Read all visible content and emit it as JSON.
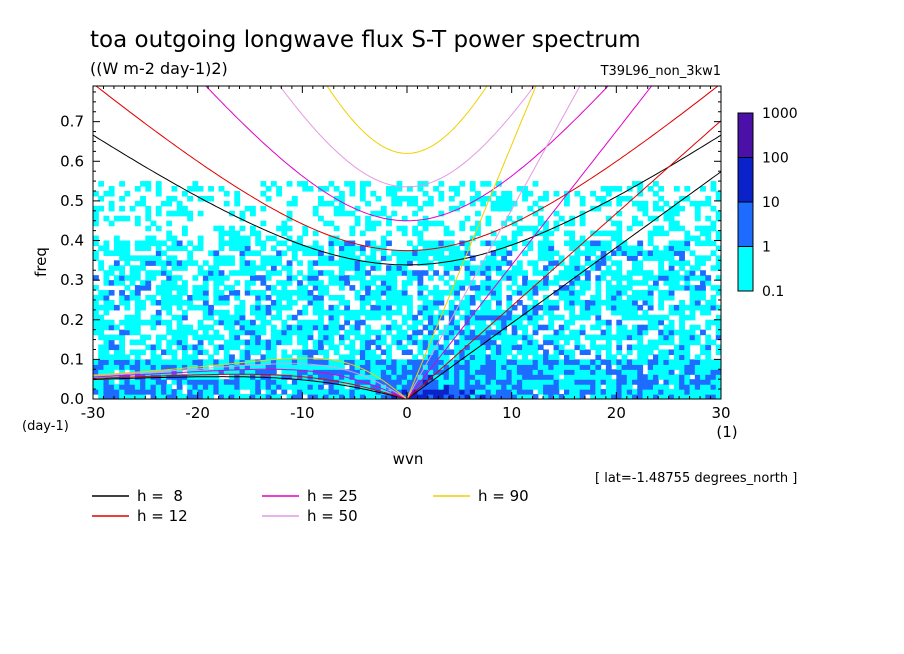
{
  "chart_data": {
    "type": "heatmap",
    "title": "toa outgoing longwave flux S-T power spectrum",
    "units": "((W m-2 day-1)2)",
    "run_label": "T39L96_non_3kw1",
    "xlabel": "wvn",
    "ylabel": "freq",
    "x_unit": "(1)",
    "y_unit": "(day-1)",
    "xlim": [
      -30,
      30
    ],
    "ylim": [
      0,
      0.79
    ],
    "x_ticks": [
      "-30",
      "-20",
      "-10",
      "0",
      "10",
      "20",
      "30"
    ],
    "y_ticks": [
      "0.0",
      "0.1",
      "0.2",
      "0.3",
      "0.4",
      "0.5",
      "0.6",
      "0.7"
    ],
    "colorbar": {
      "levels": [
        "0.1",
        "1",
        "10",
        "100",
        "1000"
      ],
      "colors": [
        "#00ffff",
        "#1e6cff",
        "#0a22c8",
        "#4a10a8"
      ]
    },
    "contour_colors": {
      "white": "#ffffff",
      "cyan": "#00ffff",
      "blue": "#1e6cff",
      "dark_blue": "#0a22c8"
    },
    "dispersion_curves": [
      {
        "label": "h =  8",
        "color": "#000000"
      },
      {
        "label": "h = 12",
        "color": "#e00000"
      },
      {
        "label": "h = 25",
        "color": "#e000c8"
      },
      {
        "label": "h = 50",
        "color": "#e49ae4"
      },
      {
        "label": "h = 90",
        "color": "#f0d000"
      }
    ],
    "annotation": "[ lat=-1.48755 degrees_north ]"
  }
}
